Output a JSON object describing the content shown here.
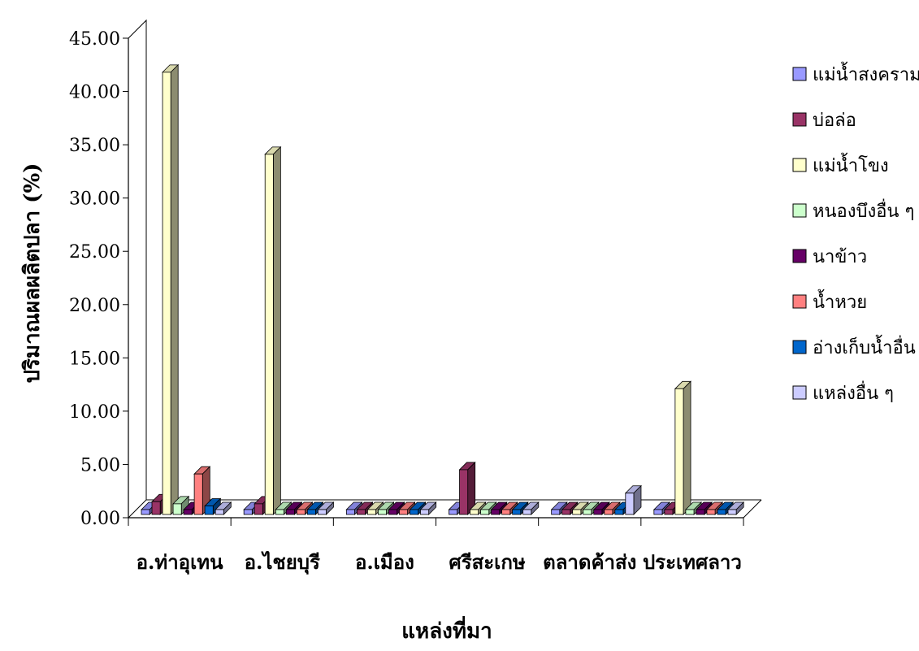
{
  "chart_data": {
    "type": "bar",
    "title": "",
    "xlabel": "แหล่งที่มา",
    "ylabel": "ปริมาณผลผลิตปลา (%)",
    "ylim": [
      0,
      45
    ],
    "y_ticks": [
      "0.00",
      "5.00",
      "10.00",
      "15.00",
      "20.00",
      "25.00",
      "30.00",
      "35.00",
      "40.00",
      "45.00"
    ],
    "categories": [
      "อ.ท่าอุเทน",
      "อ.ไชยบุรี",
      "อ.เมือง",
      "ศรีสะเกษ",
      "ตลาดค้าส่ง",
      "ประเทศลาว"
    ],
    "legend_position": "right",
    "grid": false,
    "series": [
      {
        "name": "แม่น้ำสงคราม",
        "color": "#9999ff",
        "values": [
          0,
          0,
          0,
          0,
          0,
          0
        ]
      },
      {
        "name": "บ่อล่อ",
        "color": "#993366",
        "values": [
          1.2,
          1.0,
          0,
          4.2,
          0,
          0
        ]
      },
      {
        "name": "แม่น้ำโขง",
        "color": "#ffffcc",
        "values": [
          41.5,
          33.8,
          0,
          0,
          0,
          11.8
        ]
      },
      {
        "name": "หนองบึงอื่น ๆ",
        "color": "#ccffcc",
        "values": [
          1.0,
          0,
          0,
          0,
          0,
          0
        ]
      },
      {
        "name": "นาข้าว",
        "color": "#660066",
        "values": [
          0,
          0,
          0,
          0,
          0,
          0
        ]
      },
      {
        "name": "น้ำหวย",
        "color": "#ff8080",
        "values": [
          3.8,
          0,
          0,
          0,
          0,
          0
        ]
      },
      {
        "name": "อ่างเก็บน้ำอื่น",
        "color": "#0066cc",
        "values": [
          0.8,
          0,
          0,
          0,
          0.3,
          0
        ]
      },
      {
        "name": "แหล่งอื่น ๆ",
        "color": "#ccccff",
        "values": [
          0.4,
          0,
          0,
          0,
          2.0,
          0
        ]
      }
    ]
  }
}
